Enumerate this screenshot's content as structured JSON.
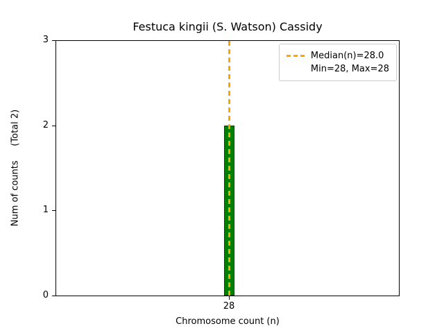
{
  "chart_data": {
    "type": "bar",
    "title": "Festuca kingii (S. Watson) Cassidy",
    "xlabel": "Chromosome count (n)",
    "ylabel": "Num of counts     (Total 2)",
    "categories": [
      28
    ],
    "values": [
      2
    ],
    "total_counts": 2,
    "ylim": [
      0,
      3
    ],
    "yticks": [
      "0",
      "1",
      "2",
      "3"
    ],
    "xticks": [
      "28"
    ],
    "bar_color": "#008000",
    "bar_edge_color": "#0a3d0a",
    "grid": false,
    "legend_position": "upper right",
    "median_line": {
      "x": 28,
      "label": "Median(n)=28.0",
      "color": "#FFA500",
      "style": "dashed"
    },
    "stats_label": "Min=28, Max=28"
  }
}
